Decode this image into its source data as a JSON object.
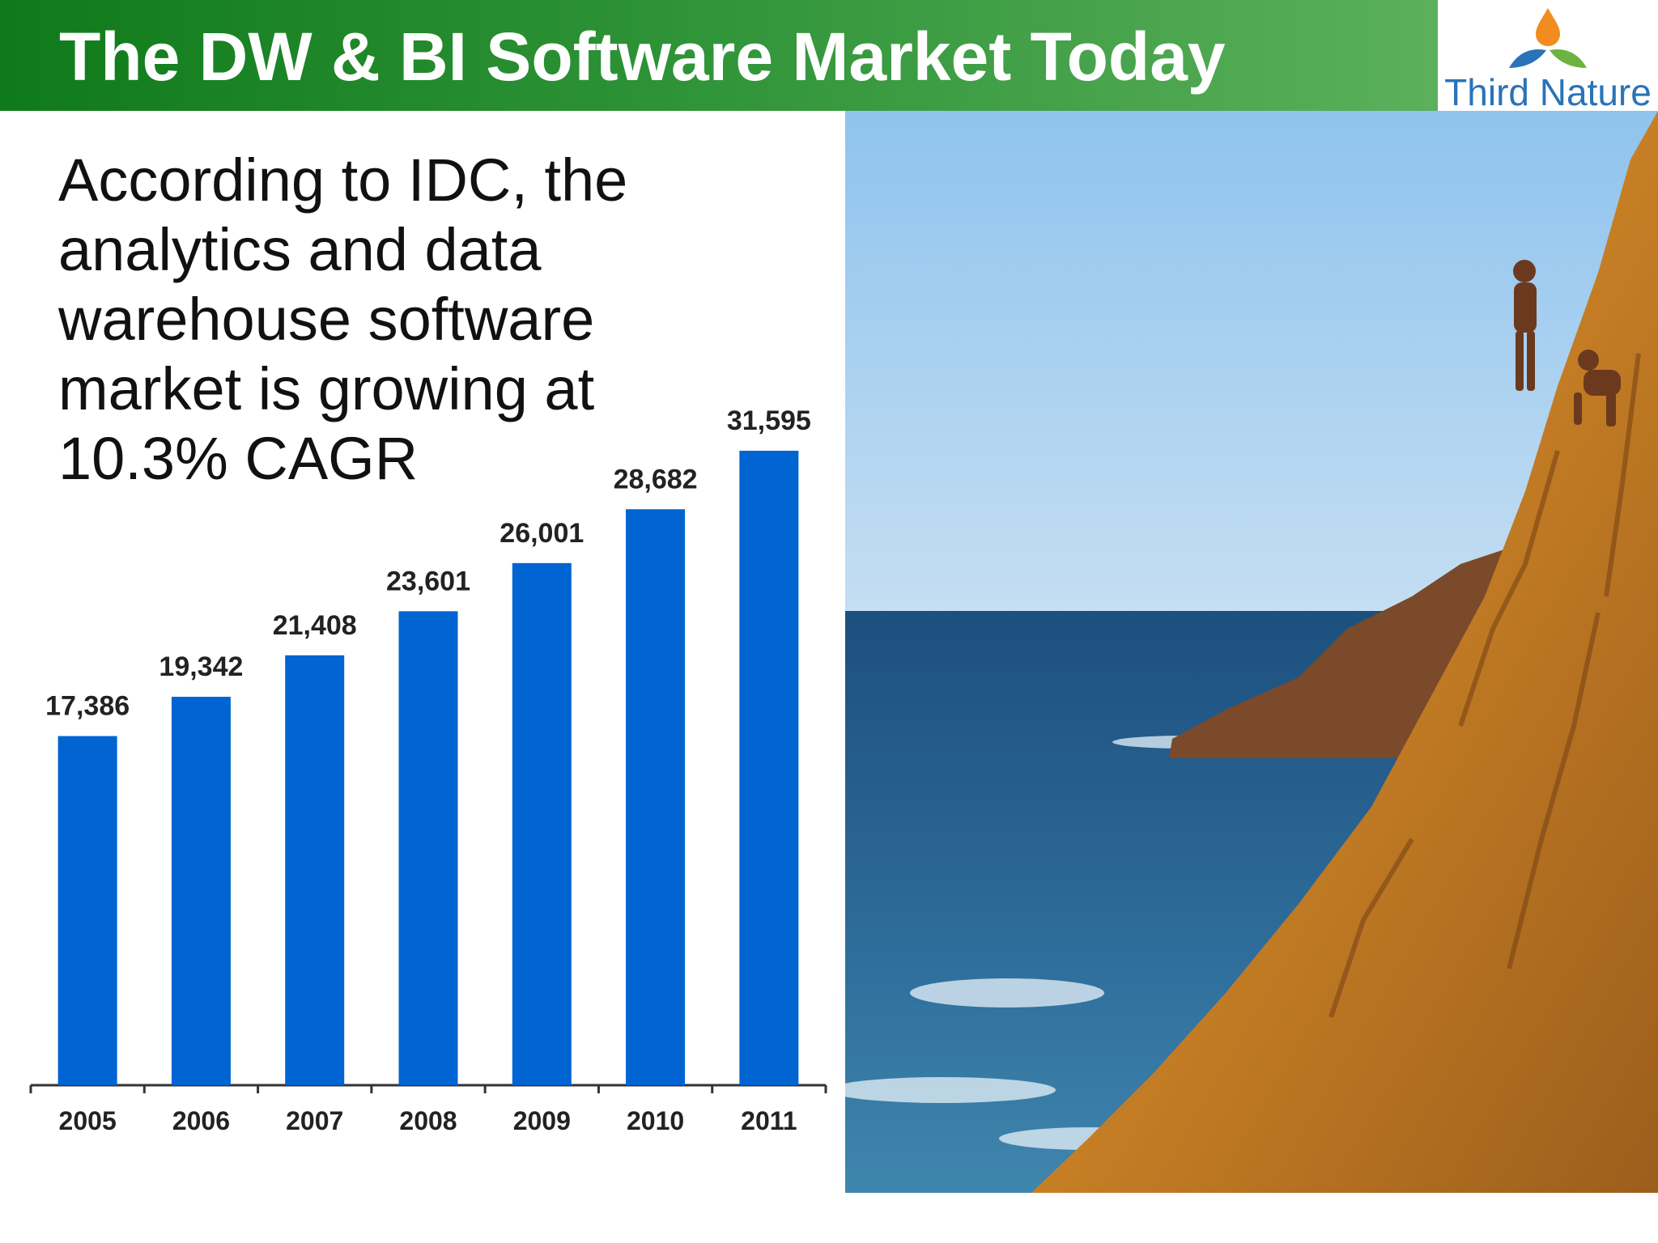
{
  "header": {
    "title": "The DW & BI Software Market Today"
  },
  "logo": {
    "text": "Third Nature",
    "icon": "droplet-leaves-logo-icon",
    "colors": {
      "droplet": "#f28c1e",
      "left_leaf": "#2a73b8",
      "right_leaf": "#6cb33f",
      "text": "#2a73b8"
    }
  },
  "body": {
    "lines": [
      "According to IDC, the",
      "analytics and data",
      "warehouse software",
      "market is growing at",
      "10.3% CAGR"
    ]
  },
  "chart_data": {
    "type": "bar",
    "categories": [
      "2005",
      "2006",
      "2007",
      "2008",
      "2009",
      "2010",
      "2011"
    ],
    "values": [
      17386,
      19342,
      21408,
      23601,
      26001,
      28682,
      31595
    ],
    "value_labels": [
      "17,386",
      "19,342",
      "21,408",
      "23,601",
      "26,001",
      "28,682",
      "31,595"
    ],
    "ylim": [
      0,
      31595
    ],
    "grid": false,
    "legend": "none",
    "bar_color": "#0064d2"
  },
  "photo": {
    "icon": "cliff-divers-photo",
    "colors": {
      "sky": "#a9cfee",
      "sea": "#1f5d8c",
      "rock": "#c98a2e"
    }
  }
}
